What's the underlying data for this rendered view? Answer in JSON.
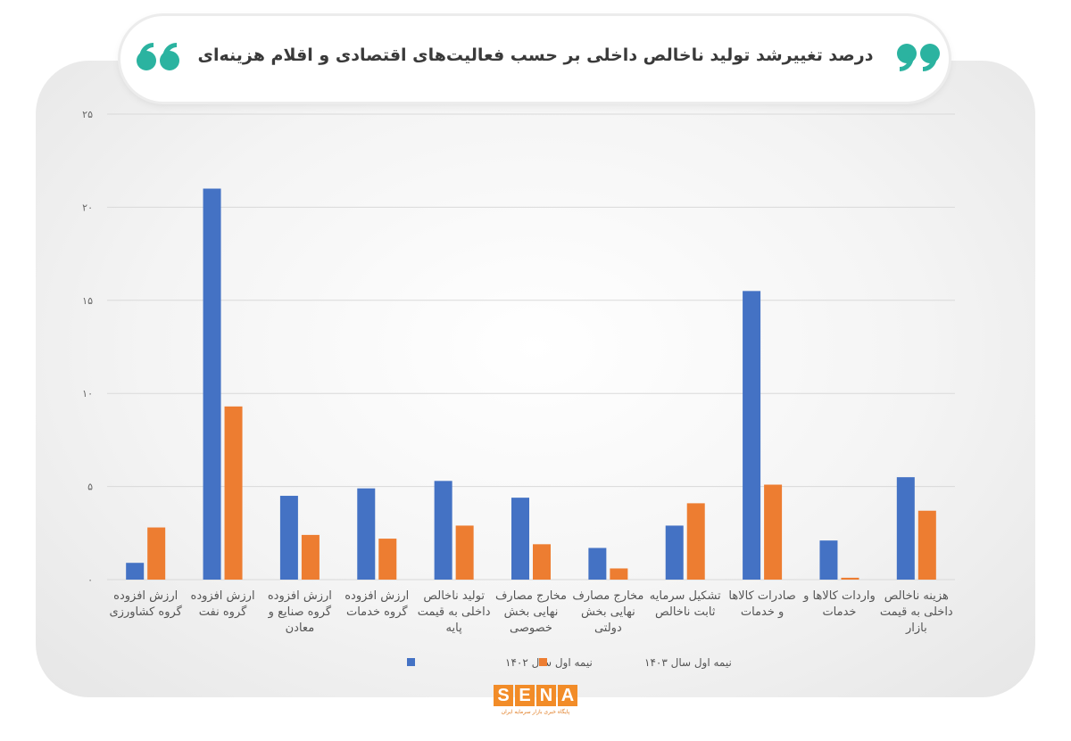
{
  "header": {
    "title": "درصد تغییرشد تولید ناخالص داخلی بر حسب فعالیت‌های اقتصادی و اقلام هزینه‌ای"
  },
  "icons": {
    "quote_left": "quote-open-icon",
    "quote_right": "quote-close-icon"
  },
  "colors": {
    "accent": "#2bb3a0",
    "series1": "#4472c4",
    "series2": "#ed7d31",
    "logo": "#f28c28"
  },
  "logo": {
    "letters": [
      "S",
      "E",
      "N",
      "A"
    ],
    "tagline": "پایگاه خبری بازار سرمایه ایران"
  },
  "chart_data": {
    "type": "bar",
    "categories": [
      [
        "ارزش افزوده",
        "گروه کشاورزی"
      ],
      [
        "ارزش افزوده",
        "گروه نفت"
      ],
      [
        "ارزش افزوده",
        "گروه صنایع و",
        "معادن"
      ],
      [
        "ارزش افزوده",
        "گروه خدمات"
      ],
      [
        "تولید ناخالص",
        "داخلی به قیمت",
        "پایه"
      ],
      [
        "مخارج مصارف",
        "نهایی بخش",
        "خصوصی"
      ],
      [
        "مخارج مصارف",
        "نهایی بخش",
        "دولتی"
      ],
      [
        "تشکیل سرمایه",
        "ثابت ناخالص"
      ],
      [
        "صادرات کالاها",
        "و خدمات"
      ],
      [
        "واردات کالاها و",
        "خدمات"
      ],
      [
        "هزینه ناخالص",
        "داخلی به قیمت",
        "بازار"
      ]
    ],
    "series": [
      {
        "name": "نیمه اول سال ۱۴۰۲",
        "color": "#4472c4",
        "values": [
          0.9,
          21.0,
          4.5,
          4.9,
          5.3,
          4.4,
          1.7,
          2.9,
          15.5,
          2.1,
          5.5
        ]
      },
      {
        "name": "نیمه اول سال ۱۴۰۳",
        "color": "#ed7d31",
        "values": [
          2.8,
          9.3,
          2.4,
          2.2,
          2.9,
          1.9,
          0.6,
          4.1,
          5.1,
          0.1,
          3.7
        ]
      }
    ],
    "yticks": [
      "۰",
      "۵",
      "۱۰",
      "۱۵",
      "۲۰",
      "۲۵"
    ],
    "ylim": [
      0,
      25
    ],
    "grid": true,
    "legend_position": "bottom"
  }
}
